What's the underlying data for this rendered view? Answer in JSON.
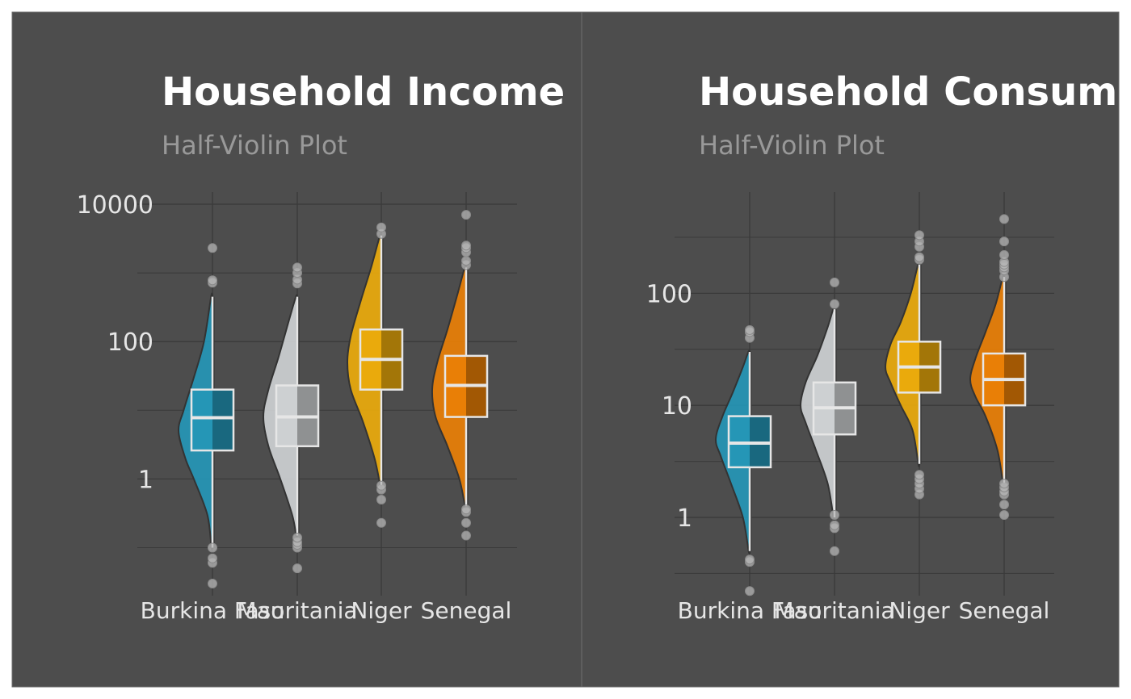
{
  "colors": {
    "panel_background": "#4d4d4d",
    "panel_border": "#6e6e6e",
    "gridline": "#3a3a3a",
    "title": "#ffffff",
    "subtitle": "#999999",
    "tick_label": "#e6e6e6",
    "outline": "#333333",
    "whisker": "#333333",
    "box_edge": "#e6e6e6",
    "outlier": "#b5b5b5",
    "countries": {
      "Burkina Faso": "#2596b6",
      "Mauritania": "#cdd0d2",
      "Niger": "#eaaa0c",
      "Senegal": "#e97f06"
    }
  },
  "chart_data": [
    {
      "type": "half-violin",
      "title": "Household Income",
      "subtitle": "Half-Violin Plot",
      "categories": [
        "Burkina Faso",
        "Mauritania",
        "Niger",
        "Senegal"
      ],
      "y_scale": "log10",
      "ylim": [
        0.02,
        15000
      ],
      "y_ticks": [
        1,
        100,
        10000
      ],
      "y_tick_labels": [
        "1",
        "100",
        "10000"
      ],
      "y_minor_gridlines": [
        0.1,
        10,
        1000
      ],
      "grid": true,
      "legend": "none",
      "series": [
        {
          "category": "Burkina Faso",
          "box": {
            "q1": 2.6,
            "median": 7.8,
            "q3": 20
          },
          "whisker": [
            0.1,
            450
          ],
          "violin": {
            "ys": [
              0.1,
              0.3,
              1,
              2,
              5,
              10,
              30,
              100,
              450
            ],
            "widths": [
              0.03,
              0.15,
              0.55,
              0.8,
              1,
              0.85,
              0.55,
              0.25,
              0.04
            ]
          },
          "outliers": [
            0.03,
            0.06,
            0.07,
            0.1,
            720,
            780,
            2300
          ]
        },
        {
          "category": "Mauritania",
          "box": {
            "q1": 3,
            "median": 8,
            "q3": 23
          },
          "whisker": [
            0.15,
            450
          ],
          "violin": {
            "ys": [
              0.15,
              0.3,
              1,
              3,
              8,
              20,
              60,
              200,
              450
            ],
            "widths": [
              0.03,
              0.15,
              0.5,
              0.85,
              1,
              0.85,
              0.55,
              0.25,
              0.04
            ]
          },
          "outliers": [
            0.05,
            0.1,
            0.11,
            0.12,
            0.14,
            700,
            800,
            1000,
            1200
          ]
        },
        {
          "category": "Niger",
          "box": {
            "q1": 20,
            "median": 55,
            "q3": 150
          },
          "whisker": [
            0.8,
            3500
          ],
          "violin": {
            "ys": [
              0.8,
              2,
              7,
              20,
              50,
              120,
              400,
              1200,
              3500
            ],
            "widths": [
              0.03,
              0.2,
              0.55,
              0.9,
              1,
              0.9,
              0.6,
              0.3,
              0.04
            ]
          },
          "outliers": [
            0.23,
            0.5,
            0.7,
            0.8,
            3700,
            4600
          ]
        },
        {
          "category": "Senegal",
          "box": {
            "q1": 8,
            "median": 23,
            "q3": 62
          },
          "whisker": [
            0.4,
            1200
          ],
          "violin": {
            "ys": [
              0.4,
              1,
              3,
              8,
              20,
              50,
              150,
              500,
              1200
            ],
            "widths": [
              0.03,
              0.2,
              0.55,
              0.9,
              1,
              0.85,
              0.55,
              0.25,
              0.04
            ]
          },
          "outliers": [
            0.15,
            0.23,
            0.33,
            0.36,
            1300,
            1500,
            2000,
            2300,
            2500,
            7000
          ]
        }
      ]
    },
    {
      "type": "half-violin",
      "title": "Household Consum",
      "subtitle": "Half-Violin Plot",
      "categories": [
        "Burkina Faso",
        "Mauritania",
        "Niger",
        "Senegal"
      ],
      "y_scale": "log10",
      "ylim": [
        0.2,
        800
      ],
      "y_ticks": [
        1,
        10,
        100
      ],
      "y_tick_labels": [
        "1",
        "10",
        "100"
      ],
      "y_minor_gridlines": [
        0.316,
        3.16,
        31.6,
        316
      ],
      "grid": true,
      "legend": "none",
      "series": [
        {
          "category": "Burkina Faso",
          "box": {
            "q1": 2.8,
            "median": 4.6,
            "q3": 8
          },
          "whisker": [
            0.5,
            30
          ],
          "violin": {
            "ys": [
              0.5,
              1,
              2,
              3.5,
              5,
              8,
              13,
              22,
              30
            ],
            "widths": [
              0.03,
              0.2,
              0.55,
              0.85,
              1,
              0.8,
              0.5,
              0.2,
              0.04
            ]
          },
          "outliers": [
            0.22,
            0.4,
            0.42,
            40,
            45,
            47
          ]
        },
        {
          "category": "Mauritania",
          "box": {
            "q1": 5.5,
            "median": 9.5,
            "q3": 16
          },
          "whisker": [
            1,
            72
          ],
          "violin": {
            "ys": [
              1,
              2,
              4,
              7,
              10,
              16,
              28,
              50,
              72
            ],
            "widths": [
              0.03,
              0.2,
              0.55,
              0.85,
              1,
              0.85,
              0.5,
              0.2,
              0.04
            ]
          },
          "outliers": [
            0.5,
            0.8,
            0.85,
            1.05,
            80,
            125
          ]
        },
        {
          "category": "Niger",
          "box": {
            "q1": 13,
            "median": 22,
            "q3": 37
          },
          "whisker": [
            3,
            180
          ],
          "violin": {
            "ys": [
              3,
              6,
              10,
              16,
              22,
              35,
              55,
              100,
              180
            ],
            "widths": [
              0.03,
              0.2,
              0.55,
              0.85,
              1,
              0.85,
              0.55,
              0.25,
              0.04
            ]
          },
          "outliers": [
            1.6,
            1.8,
            2,
            2.2,
            2.4,
            200,
            210,
            260,
            290,
            330
          ]
        },
        {
          "category": "Senegal",
          "box": {
            "q1": 10,
            "median": 17,
            "q3": 29
          },
          "whisker": [
            2,
            140
          ],
          "violin": {
            "ys": [
              2,
              4,
              8,
              12,
              17,
              26,
              45,
              80,
              140
            ],
            "widths": [
              0.03,
              0.2,
              0.55,
              0.85,
              1,
              0.85,
              0.55,
              0.25,
              0.04
            ]
          },
          "outliers": [
            1.05,
            1.3,
            1.6,
            1.7,
            1.85,
            2,
            140,
            160,
            170,
            180,
            190,
            220,
            290,
            460
          ]
        }
      ]
    }
  ]
}
